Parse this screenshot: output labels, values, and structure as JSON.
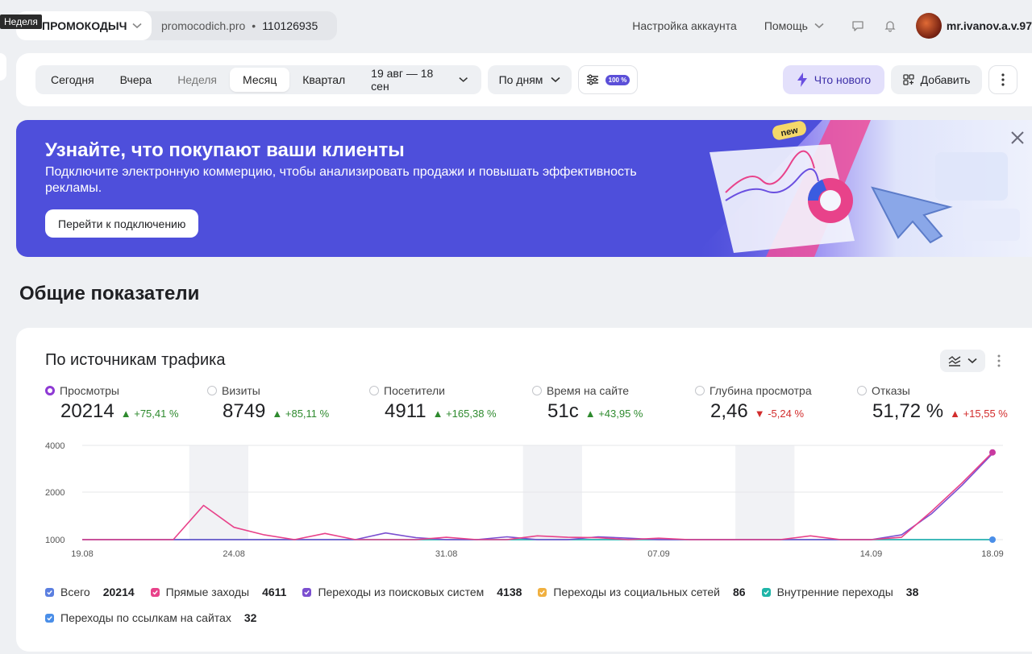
{
  "tooltip": "Неделя",
  "counter": {
    "name": "ПРОМОКОДЫЧ",
    "site": "promocodich.pro",
    "separator": "•",
    "id": "110126935"
  },
  "header": {
    "account_settings": "Настройка аккаунта",
    "help": "Помощь",
    "username": "mr.ivanov.a.v.97"
  },
  "toolbar": {
    "periods": [
      "Сегодня",
      "Вчера",
      "Неделя",
      "Месяц",
      "Квартал"
    ],
    "active_period": "Месяц",
    "date_range": "19 авг — 18 сен",
    "grouping": "По дням",
    "sample_badge": "100 %",
    "whats_new": "Что нового",
    "add": "Добавить"
  },
  "banner": {
    "title": "Узнайте, что покупают ваши клиенты",
    "text": "Подключите электронную коммерцию, чтобы анализировать продажи и повышать эффективность рекламы.",
    "button": "Перейти к подключению",
    "art_badge": "new"
  },
  "section_title": "Общие показатели",
  "card": {
    "title": "По источникам трафика",
    "metrics": [
      {
        "label": "Просмотры",
        "value": "20214",
        "delta": "+75,41 %",
        "dir": "up",
        "selected": true
      },
      {
        "label": "Визиты",
        "value": "8749",
        "delta": "+85,11 %",
        "dir": "up",
        "selected": false
      },
      {
        "label": "Посетители",
        "value": "4911",
        "delta": "+165,38 %",
        "dir": "up",
        "selected": false
      },
      {
        "label": "Время на сайте",
        "value": "51с",
        "delta": "+43,95 %",
        "dir": "up",
        "selected": false
      },
      {
        "label": "Глубина просмотра",
        "value": "2,46",
        "delta": "-5,24 %",
        "dir": "down",
        "selected": false
      },
      {
        "label": "Отказы",
        "value": "51,72 %",
        "delta": "+15,55 %",
        "dir": "up",
        "selected": false
      }
    ],
    "legend": [
      {
        "label": "Всего",
        "value": "20214",
        "color": "#5b7fe0"
      },
      {
        "label": "Прямые заходы",
        "value": "4611",
        "color": "#e8428a"
      },
      {
        "label": "Переходы из поисковых систем",
        "value": "4138",
        "color": "#7b4fd0"
      },
      {
        "label": "Переходы из социальных сетей",
        "value": "86",
        "color": "#f0b040"
      },
      {
        "label": "Внутренние переходы",
        "value": "38",
        "color": "#1fb5a8"
      },
      {
        "label": "Переходы по ссылкам на сайтах",
        "value": "32",
        "color": "#4a8ee8"
      }
    ]
  },
  "chart_data": {
    "type": "line",
    "x": [
      "19.08",
      "20.08",
      "21.08",
      "22.08",
      "23.08",
      "24.08",
      "25.08",
      "26.08",
      "27.08",
      "28.08",
      "29.08",
      "30.08",
      "31.08",
      "01.09",
      "02.09",
      "03.09",
      "04.09",
      "05.09",
      "06.09",
      "07.09",
      "08.09",
      "09.09",
      "10.09",
      "11.09",
      "12.09",
      "13.09",
      "14.09",
      "15.09",
      "16.09",
      "17.09",
      "18.09"
    ],
    "xticks": [
      "19.08",
      "24.08",
      "31.08",
      "07.09",
      "14.09",
      "18.09"
    ],
    "yticks": [
      "1000",
      "2000",
      "4000"
    ],
    "ylim": [
      0,
      4000
    ],
    "series": [
      {
        "name": "Прямые заходы",
        "color": "#e8428a",
        "values": [
          1,
          1,
          1,
          1,
          1720,
          1260,
          1100,
          1,
          1130,
          1,
          1,
          1,
          1050,
          1,
          1,
          1080,
          1050,
          1040,
          1,
          1030,
          1,
          1,
          1,
          1,
          1080,
          1,
          1,
          1050,
          1600,
          2400,
          3700
        ]
      },
      {
        "name": "Переходы из поисковых систем",
        "color": "#7b4fd0",
        "values": [
          1,
          1,
          1,
          1,
          1,
          1,
          1,
          1,
          1,
          1,
          1140,
          1040,
          1,
          1,
          1060,
          1,
          1,
          1060,
          1030,
          1,
          1,
          1,
          1,
          1,
          1,
          1,
          1,
          1100,
          1550,
          2300,
          3650
        ]
      },
      {
        "name": "Внутренние переходы",
        "color": "#1fb5a8",
        "values": [
          1,
          1,
          1,
          1,
          1,
          1,
          1,
          1,
          1,
          1,
          1,
          1,
          1,
          1,
          1,
          1,
          1,
          1,
          1,
          1,
          1,
          1,
          1,
          1,
          1,
          1,
          1,
          1,
          1,
          1,
          1
        ]
      },
      {
        "name": "Переходы по ссылкам на сайтах",
        "color": "#4a8ee8",
        "values": [
          1,
          1,
          1,
          1,
          1,
          1,
          1,
          1,
          1,
          1,
          1,
          1,
          1,
          1,
          1,
          1,
          1,
          1,
          1,
          1,
          1,
          1,
          1,
          1,
          1,
          1,
          1,
          1,
          1,
          1,
          1
        ]
      }
    ],
    "weekends": [
      [
        21,
        22
      ],
      [
        28,
        29
      ],
      [
        35,
        36
      ],
      [
        42,
        43
      ]
    ]
  }
}
